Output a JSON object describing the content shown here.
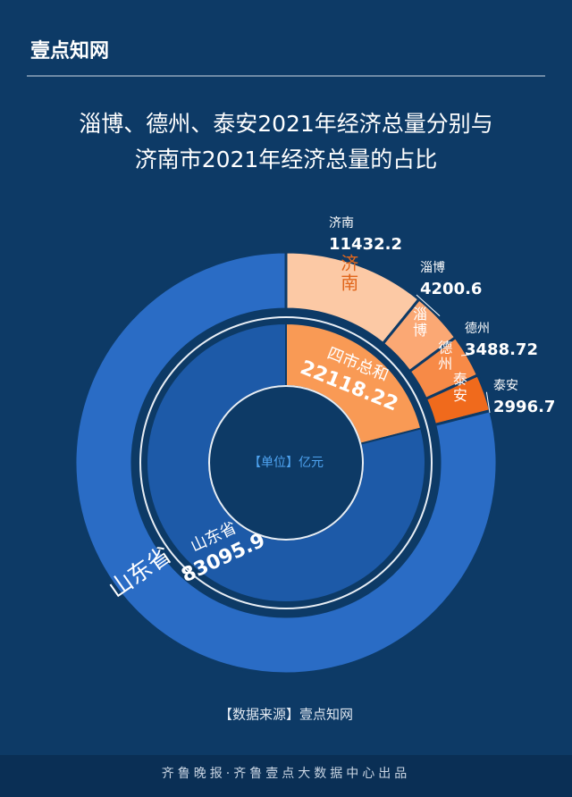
{
  "header": {
    "logo": "壹点知网"
  },
  "chart_data": {
    "type": "sunburst",
    "title": [
      "淄博、德州、泰安2021年经济总量分别与",
      "济南市2021年经济总量的占比"
    ],
    "unit_label": "【单位】亿元",
    "inner": {
      "categories": [
        "四市总和",
        "山东省"
      ],
      "values": [
        22118.22,
        83095.9
      ],
      "colors": [
        "#f99a55",
        "#1d5aa8"
      ]
    },
    "outer": {
      "categories": [
        "济南",
        "淄博",
        "德州",
        "泰安"
      ],
      "values": [
        11432.2,
        4200.6,
        3488.72,
        2996.7
      ],
      "colors": [
        "#fcc9a5",
        "#fba874",
        "#f78a47",
        "#f06a1c"
      ],
      "remainder_label": "山东省",
      "remainder_color": "#2a6cc5"
    }
  },
  "footer": {
    "source": "【数据来源】壹点知网",
    "credit": "齐鲁晚报·齐鲁壹点大数据中心出品"
  }
}
